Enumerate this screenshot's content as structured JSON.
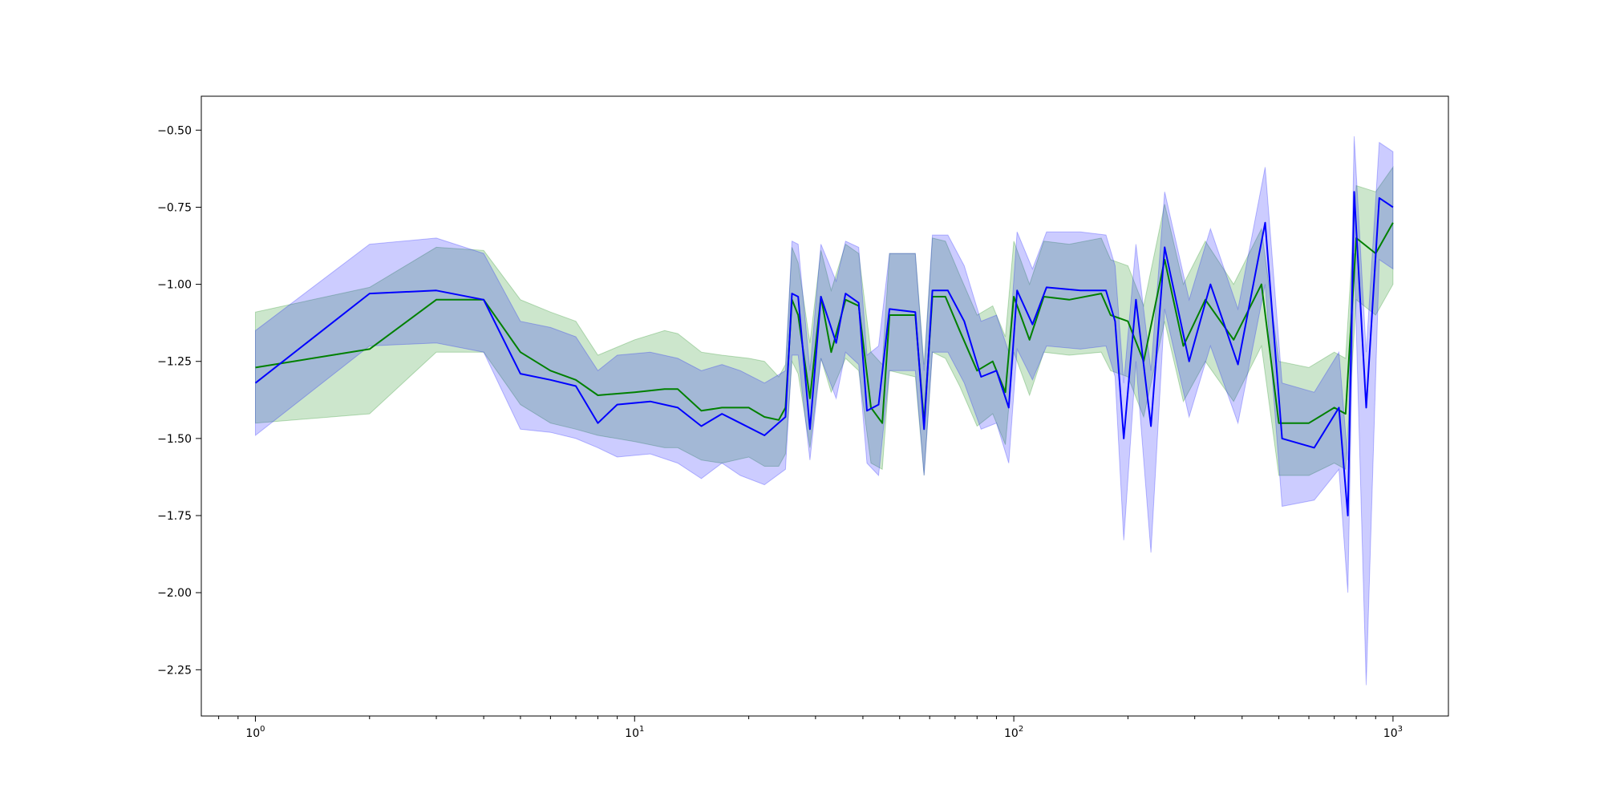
{
  "chart_data": {
    "type": "line",
    "title": "",
    "xlabel": "",
    "ylabel": "",
    "x_scale": "log",
    "xlim": [
      0.72,
      1400
    ],
    "ylim": [
      -2.4,
      -0.39
    ],
    "grid": false,
    "legend": "none",
    "x_ticks": [
      {
        "value": 1,
        "base": "10",
        "exp": "0"
      },
      {
        "value": 10,
        "base": "10",
        "exp": "1"
      },
      {
        "value": 100,
        "base": "10",
        "exp": "2"
      },
      {
        "value": 1000,
        "base": "10",
        "exp": "3"
      }
    ],
    "y_ticks": [
      {
        "value": -0.5,
        "label": "−0.50"
      },
      {
        "value": -0.75,
        "label": "−0.75"
      },
      {
        "value": -1.0,
        "label": "−1.00"
      },
      {
        "value": -1.25,
        "label": "−1.25"
      },
      {
        "value": -1.5,
        "label": "−1.50"
      },
      {
        "value": -1.75,
        "label": "−1.75"
      },
      {
        "value": -2.0,
        "label": "−2.00"
      },
      {
        "value": -2.25,
        "label": "−2.25"
      }
    ],
    "series": [
      {
        "color": "#008000",
        "band_color": "#008000",
        "band_opacity": 0.2,
        "points": [
          [
            1,
            -1.27,
            -1.09,
            -1.45
          ],
          [
            2,
            -1.21,
            -1.01,
            -1.42
          ],
          [
            3,
            -1.05,
            -0.88,
            -1.22
          ],
          [
            4,
            -1.05,
            -0.89,
            -1.22
          ],
          [
            5,
            -1.22,
            -1.05,
            -1.39
          ],
          [
            6,
            -1.28,
            -1.09,
            -1.45
          ],
          [
            7,
            -1.31,
            -1.12,
            -1.47
          ],
          [
            8,
            -1.36,
            -1.23,
            -1.49
          ],
          [
            10,
            -1.35,
            -1.18,
            -1.51
          ],
          [
            12,
            -1.34,
            -1.15,
            -1.53
          ],
          [
            13,
            -1.34,
            -1.16,
            -1.53
          ],
          [
            15,
            -1.41,
            -1.22,
            -1.57
          ],
          [
            17,
            -1.4,
            -1.23,
            -1.58
          ],
          [
            20,
            -1.4,
            -1.24,
            -1.56
          ],
          [
            22,
            -1.43,
            -1.25,
            -1.59
          ],
          [
            24,
            -1.44,
            -1.3,
            -1.59
          ],
          [
            25,
            -1.4,
            -1.26,
            -1.55
          ],
          [
            26,
            -1.05,
            -0.88,
            -1.25
          ],
          [
            27,
            -1.1,
            -0.93,
            -1.29
          ],
          [
            29,
            -1.37,
            -1.19,
            -1.53
          ],
          [
            31,
            -1.04,
            -0.89,
            -1.24
          ],
          [
            33,
            -1.22,
            -1.02,
            -1.35
          ],
          [
            36,
            -1.05,
            -0.87,
            -1.24
          ],
          [
            39,
            -1.07,
            -0.9,
            -1.28
          ],
          [
            42,
            -1.4,
            -1.22,
            -1.58
          ],
          [
            45,
            -1.45,
            -1.26,
            -1.6
          ],
          [
            47,
            -1.1,
            -0.9,
            -1.28
          ],
          [
            55,
            -1.1,
            -0.9,
            -1.3
          ],
          [
            58,
            -1.45,
            -1.26,
            -1.62
          ],
          [
            61,
            -1.04,
            -0.85,
            -1.22
          ],
          [
            66,
            -1.04,
            -0.86,
            -1.24
          ],
          [
            72,
            -1.15,
            -0.97,
            -1.33
          ],
          [
            80,
            -1.28,
            -1.1,
            -1.46
          ],
          [
            88,
            -1.25,
            -1.07,
            -1.42
          ],
          [
            95,
            -1.35,
            -1.17,
            -1.52
          ],
          [
            100,
            -1.04,
            -0.86,
            -1.22
          ],
          [
            110,
            -1.18,
            -1.0,
            -1.36
          ],
          [
            120,
            -1.04,
            -0.86,
            -1.22
          ],
          [
            140,
            -1.05,
            -0.87,
            -1.23
          ],
          [
            170,
            -1.03,
            -0.85,
            -1.22
          ],
          [
            180,
            -1.1,
            -0.92,
            -1.28
          ],
          [
            200,
            -1.12,
            -0.94,
            -1.3
          ],
          [
            220,
            -1.25,
            -1.07,
            -1.43
          ],
          [
            250,
            -0.92,
            -0.74,
            -1.12
          ],
          [
            280,
            -1.2,
            -1.0,
            -1.38
          ],
          [
            320,
            -1.05,
            -0.86,
            -1.25
          ],
          [
            380,
            -1.18,
            -1.0,
            -1.38
          ],
          [
            450,
            -1.0,
            -0.82,
            -1.2
          ],
          [
            500,
            -1.45,
            -1.25,
            -1.62
          ],
          [
            600,
            -1.45,
            -1.27,
            -1.62
          ],
          [
            700,
            -1.4,
            -1.22,
            -1.58
          ],
          [
            750,
            -1.42,
            -1.24,
            -1.6
          ],
          [
            800,
            -0.85,
            -0.68,
            -1.05
          ],
          [
            900,
            -0.9,
            -0.7,
            -1.1
          ],
          [
            1000,
            -0.8,
            -0.62,
            -1.0
          ]
        ]
      },
      {
        "color": "#0000ff",
        "band_color": "#0000ff",
        "band_opacity": 0.2,
        "points": [
          [
            1,
            -1.32,
            -1.15,
            -1.49
          ],
          [
            2,
            -1.03,
            -0.87,
            -1.2
          ],
          [
            3,
            -1.02,
            -0.85,
            -1.19
          ],
          [
            4,
            -1.05,
            -0.9,
            -1.22
          ],
          [
            5,
            -1.29,
            -1.12,
            -1.47
          ],
          [
            6,
            -1.31,
            -1.14,
            -1.48
          ],
          [
            7,
            -1.33,
            -1.17,
            -1.5
          ],
          [
            8,
            -1.45,
            -1.28,
            -1.53
          ],
          [
            9,
            -1.39,
            -1.23,
            -1.56
          ],
          [
            11,
            -1.38,
            -1.22,
            -1.55
          ],
          [
            13,
            -1.4,
            -1.24,
            -1.58
          ],
          [
            15,
            -1.46,
            -1.28,
            -1.63
          ],
          [
            17,
            -1.42,
            -1.26,
            -1.58
          ],
          [
            19,
            -1.45,
            -1.28,
            -1.62
          ],
          [
            22,
            -1.49,
            -1.32,
            -1.65
          ],
          [
            25,
            -1.43,
            -1.28,
            -1.6
          ],
          [
            26,
            -1.03,
            -0.86,
            -1.23
          ],
          [
            27,
            -1.04,
            -0.87,
            -1.23
          ],
          [
            29,
            -1.47,
            -1.28,
            -1.57
          ],
          [
            31,
            -1.04,
            -0.87,
            -1.24
          ],
          [
            34,
            -1.19,
            -0.99,
            -1.37
          ],
          [
            36,
            -1.03,
            -0.86,
            -1.22
          ],
          [
            39,
            -1.06,
            -0.88,
            -1.26
          ],
          [
            41,
            -1.41,
            -1.23,
            -1.58
          ],
          [
            44,
            -1.39,
            -1.2,
            -1.62
          ],
          [
            47,
            -1.08,
            -0.9,
            -1.28
          ],
          [
            55,
            -1.09,
            -0.9,
            -1.28
          ],
          [
            58,
            -1.47,
            -1.28,
            -1.62
          ],
          [
            61,
            -1.02,
            -0.84,
            -1.22
          ],
          [
            67,
            -1.02,
            -0.84,
            -1.22
          ],
          [
            74,
            -1.12,
            -0.94,
            -1.32
          ],
          [
            82,
            -1.3,
            -1.12,
            -1.47
          ],
          [
            90,
            -1.28,
            -1.1,
            -1.45
          ],
          [
            97,
            -1.4,
            -1.22,
            -1.58
          ],
          [
            102,
            -1.02,
            -0.83,
            -1.21
          ],
          [
            112,
            -1.13,
            -0.95,
            -1.31
          ],
          [
            122,
            -1.01,
            -0.83,
            -1.2
          ],
          [
            150,
            -1.02,
            -0.83,
            -1.21
          ],
          [
            175,
            -1.02,
            -0.84,
            -1.2
          ],
          [
            185,
            -1.12,
            -0.94,
            -1.3
          ],
          [
            195,
            -1.5,
            -1.32,
            -1.83
          ],
          [
            210,
            -1.05,
            -0.87,
            -1.25
          ],
          [
            230,
            -1.46,
            -1.28,
            -1.87
          ],
          [
            250,
            -0.88,
            -0.7,
            -1.08
          ],
          [
            290,
            -1.25,
            -1.05,
            -1.43
          ],
          [
            330,
            -1.0,
            -0.82,
            -1.2
          ],
          [
            390,
            -1.26,
            -1.08,
            -1.45
          ],
          [
            460,
            -0.8,
            -0.62,
            -1.0
          ],
          [
            510,
            -1.5,
            -1.32,
            -1.72
          ],
          [
            620,
            -1.53,
            -1.35,
            -1.7
          ],
          [
            720,
            -1.4,
            -1.22,
            -1.6
          ],
          [
            760,
            -1.75,
            -1.57,
            -2.0
          ],
          [
            790,
            -0.7,
            -0.52,
            -0.9
          ],
          [
            850,
            -1.4,
            -1.22,
            -2.3
          ],
          [
            920,
            -0.72,
            -0.54,
            -0.92
          ],
          [
            1000,
            -0.75,
            -0.57,
            -0.95
          ]
        ]
      }
    ]
  }
}
